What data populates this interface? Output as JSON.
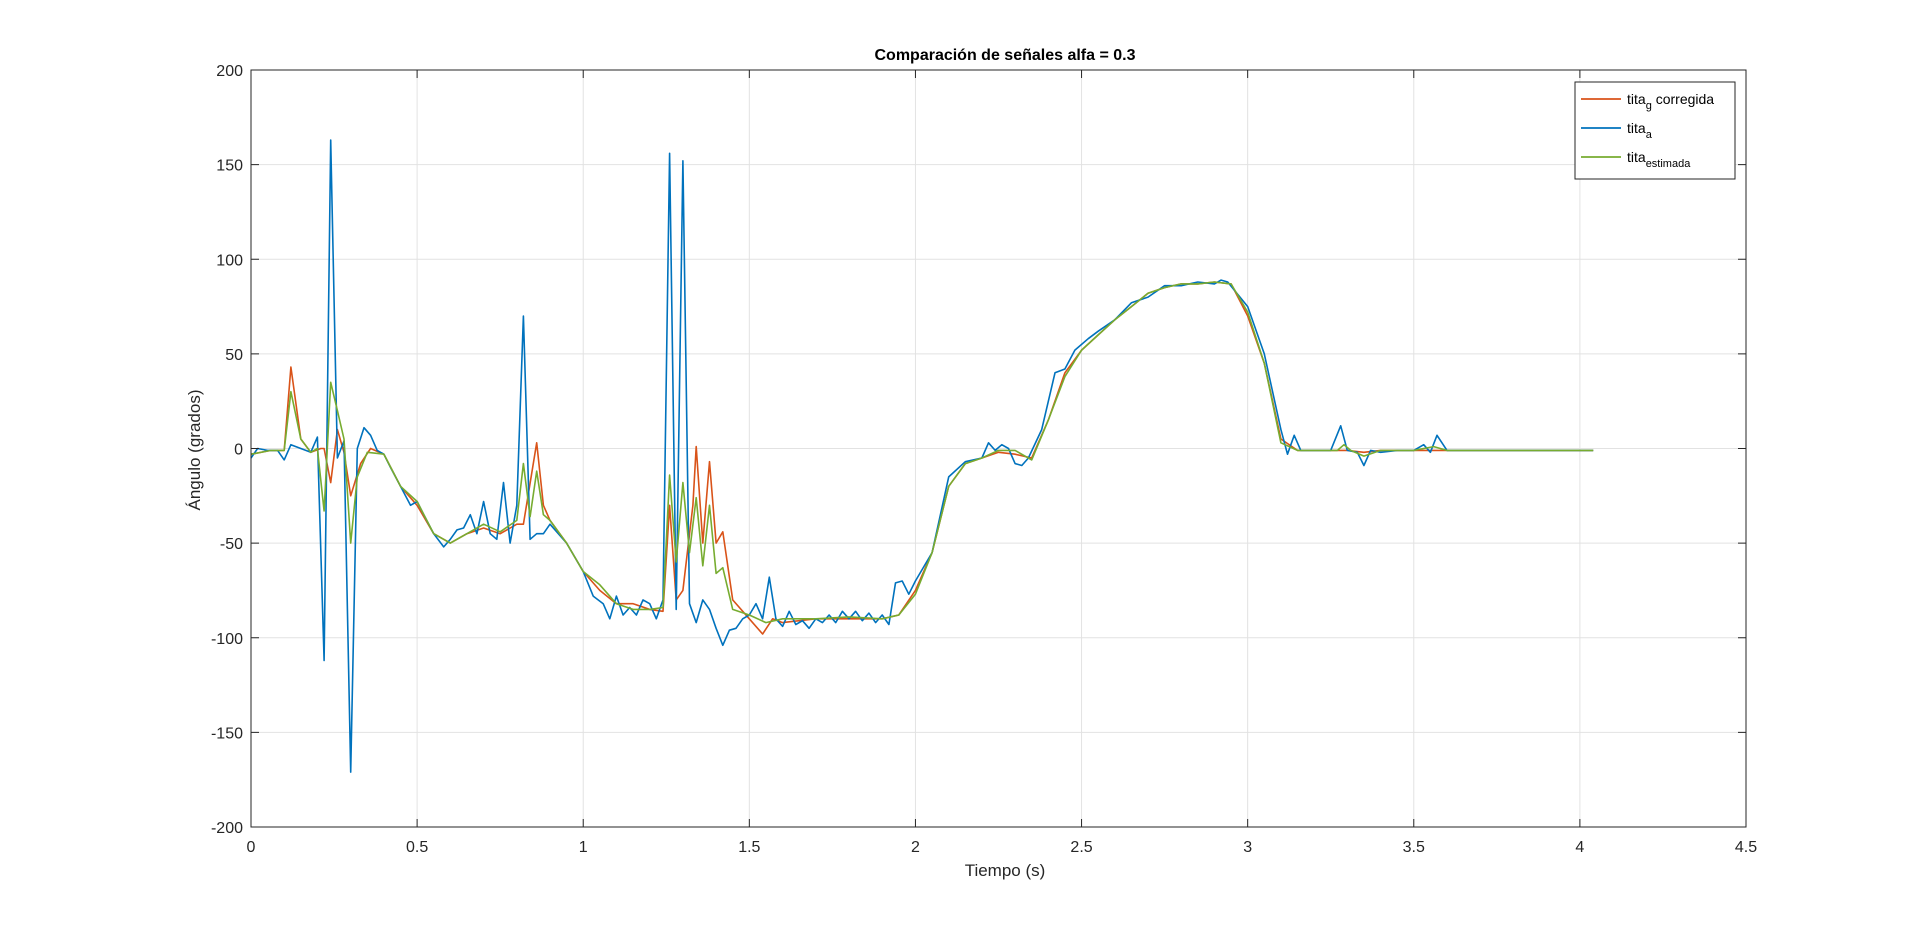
{
  "chart_data": {
    "type": "line",
    "title": "Comparación de señales alfa = 0.3",
    "xlabel": "Tiempo (s)",
    "ylabel": "Ángulo (grados)",
    "xlim": [
      0,
      4.5
    ],
    "ylim": [
      -200,
      200
    ],
    "xticks": [
      0,
      0.5,
      1,
      1.5,
      2,
      2.5,
      3,
      3.5,
      4,
      4.5
    ],
    "xtick_labels": [
      "0",
      "0.5",
      "1",
      "1.5",
      "2",
      "2.5",
      "3",
      "3.5",
      "4",
      "4.5"
    ],
    "yticks": [
      -200,
      -150,
      -100,
      -50,
      0,
      50,
      100,
      150,
      200
    ],
    "ytick_labels": [
      "-200",
      "-150",
      "-100",
      "-50",
      "0",
      "50",
      "100",
      "150",
      "200"
    ],
    "grid": true,
    "legend_position": "top-right",
    "series": [
      {
        "name_base": "tita",
        "name_sub": "g",
        "name_suffix": " corregida",
        "color": "#D95319",
        "points": [
          [
            0,
            -3
          ],
          [
            0.06,
            -1
          ],
          [
            0.1,
            -1
          ],
          [
            0.12,
            43
          ],
          [
            0.15,
            5
          ],
          [
            0.18,
            -2
          ],
          [
            0.21,
            0
          ],
          [
            0.22,
            0
          ],
          [
            0.24,
            -18
          ],
          [
            0.26,
            10
          ],
          [
            0.28,
            -2
          ],
          [
            0.3,
            -25
          ],
          [
            0.33,
            -8
          ],
          [
            0.36,
            0
          ],
          [
            0.4,
            -3
          ],
          [
            0.45,
            -20
          ],
          [
            0.5,
            -30
          ],
          [
            0.55,
            -45
          ],
          [
            0.6,
            -50
          ],
          [
            0.65,
            -45
          ],
          [
            0.7,
            -42
          ],
          [
            0.75,
            -45
          ],
          [
            0.8,
            -40
          ],
          [
            0.82,
            -40
          ],
          [
            0.86,
            3
          ],
          [
            0.88,
            -30
          ],
          [
            0.9,
            -38
          ],
          [
            0.95,
            -50
          ],
          [
            1.0,
            -65
          ],
          [
            1.05,
            -75
          ],
          [
            1.1,
            -82
          ],
          [
            1.15,
            -82
          ],
          [
            1.2,
            -85
          ],
          [
            1.24,
            -86
          ],
          [
            1.26,
            -30
          ],
          [
            1.28,
            -80
          ],
          [
            1.3,
            -75
          ],
          [
            1.33,
            -30
          ],
          [
            1.34,
            1
          ],
          [
            1.36,
            -50
          ],
          [
            1.38,
            -7
          ],
          [
            1.4,
            -50
          ],
          [
            1.42,
            -44
          ],
          [
            1.45,
            -80
          ],
          [
            1.5,
            -90
          ],
          [
            1.54,
            -98
          ],
          [
            1.57,
            -90
          ],
          [
            1.6,
            -92
          ],
          [
            1.7,
            -90
          ],
          [
            1.8,
            -90
          ],
          [
            1.9,
            -90
          ],
          [
            1.95,
            -88
          ],
          [
            2.0,
            -75
          ],
          [
            2.05,
            -55
          ],
          [
            2.1,
            -20
          ],
          [
            2.15,
            -8
          ],
          [
            2.2,
            -5
          ],
          [
            2.25,
            -2
          ],
          [
            2.3,
            -3
          ],
          [
            2.35,
            -5
          ],
          [
            2.4,
            15
          ],
          [
            2.45,
            40
          ],
          [
            2.5,
            52
          ],
          [
            2.55,
            60
          ],
          [
            2.6,
            68
          ],
          [
            2.65,
            75
          ],
          [
            2.7,
            82
          ],
          [
            2.75,
            85
          ],
          [
            2.8,
            87
          ],
          [
            2.85,
            87
          ],
          [
            2.9,
            88
          ],
          [
            2.95,
            87
          ],
          [
            3.0,
            70
          ],
          [
            3.05,
            45
          ],
          [
            3.1,
            5
          ],
          [
            3.15,
            -1
          ],
          [
            3.2,
            -1
          ],
          [
            3.3,
            -1
          ],
          [
            3.35,
            -2
          ],
          [
            3.4,
            -1
          ],
          [
            3.5,
            -1
          ],
          [
            3.6,
            -1
          ],
          [
            3.8,
            -1
          ],
          [
            4.04,
            -1
          ]
        ]
      },
      {
        "name_base": "tita",
        "name_sub": "a",
        "name_suffix": "",
        "color": "#0072BD",
        "points": [
          [
            0,
            -5
          ],
          [
            0.02,
            0
          ],
          [
            0.05,
            -1
          ],
          [
            0.08,
            -1
          ],
          [
            0.1,
            -6
          ],
          [
            0.12,
            2
          ],
          [
            0.15,
            0
          ],
          [
            0.18,
            -2
          ],
          [
            0.2,
            6
          ],
          [
            0.22,
            -112
          ],
          [
            0.24,
            163
          ],
          [
            0.26,
            -5
          ],
          [
            0.28,
            4
          ],
          [
            0.3,
            -171
          ],
          [
            0.32,
            0
          ],
          [
            0.34,
            11
          ],
          [
            0.36,
            7
          ],
          [
            0.38,
            -1
          ],
          [
            0.4,
            -3
          ],
          [
            0.42,
            -10
          ],
          [
            0.45,
            -20
          ],
          [
            0.48,
            -30
          ],
          [
            0.5,
            -28
          ],
          [
            0.52,
            -35
          ],
          [
            0.55,
            -45
          ],
          [
            0.58,
            -52
          ],
          [
            0.6,
            -48
          ],
          [
            0.62,
            -43
          ],
          [
            0.64,
            -42
          ],
          [
            0.66,
            -35
          ],
          [
            0.68,
            -45
          ],
          [
            0.7,
            -28
          ],
          [
            0.72,
            -45
          ],
          [
            0.74,
            -48
          ],
          [
            0.76,
            -18
          ],
          [
            0.78,
            -50
          ],
          [
            0.8,
            -30
          ],
          [
            0.82,
            70
          ],
          [
            0.84,
            -48
          ],
          [
            0.86,
            -45
          ],
          [
            0.88,
            -45
          ],
          [
            0.9,
            -40
          ],
          [
            0.95,
            -50
          ],
          [
            1.0,
            -65
          ],
          [
            1.03,
            -78
          ],
          [
            1.06,
            -82
          ],
          [
            1.08,
            -90
          ],
          [
            1.1,
            -78
          ],
          [
            1.12,
            -88
          ],
          [
            1.14,
            -84
          ],
          [
            1.16,
            -88
          ],
          [
            1.18,
            -80
          ],
          [
            1.2,
            -82
          ],
          [
            1.22,
            -90
          ],
          [
            1.24,
            -80
          ],
          [
            1.26,
            156
          ],
          [
            1.28,
            -85
          ],
          [
            1.3,
            152
          ],
          [
            1.32,
            -82
          ],
          [
            1.34,
            -92
          ],
          [
            1.36,
            -80
          ],
          [
            1.38,
            -85
          ],
          [
            1.4,
            -95
          ],
          [
            1.42,
            -104
          ],
          [
            1.44,
            -96
          ],
          [
            1.46,
            -95
          ],
          [
            1.48,
            -90
          ],
          [
            1.5,
            -88
          ],
          [
            1.52,
            -82
          ],
          [
            1.54,
            -90
          ],
          [
            1.56,
            -68
          ],
          [
            1.58,
            -90
          ],
          [
            1.6,
            -94
          ],
          [
            1.62,
            -86
          ],
          [
            1.64,
            -93
          ],
          [
            1.66,
            -91
          ],
          [
            1.68,
            -95
          ],
          [
            1.7,
            -90
          ],
          [
            1.72,
            -92
          ],
          [
            1.74,
            -88
          ],
          [
            1.76,
            -92
          ],
          [
            1.78,
            -86
          ],
          [
            1.8,
            -90
          ],
          [
            1.82,
            -86
          ],
          [
            1.84,
            -91
          ],
          [
            1.86,
            -87
          ],
          [
            1.88,
            -92
          ],
          [
            1.9,
            -88
          ],
          [
            1.92,
            -93
          ],
          [
            1.94,
            -71
          ],
          [
            1.96,
            -70
          ],
          [
            1.98,
            -77
          ],
          [
            2.0,
            -70
          ],
          [
            2.05,
            -55
          ],
          [
            2.1,
            -15
          ],
          [
            2.15,
            -7
          ],
          [
            2.2,
            -5
          ],
          [
            2.22,
            3
          ],
          [
            2.24,
            -1
          ],
          [
            2.26,
            2
          ],
          [
            2.28,
            0
          ],
          [
            2.3,
            -8
          ],
          [
            2.32,
            -9
          ],
          [
            2.34,
            -5
          ],
          [
            2.38,
            10
          ],
          [
            2.42,
            40
          ],
          [
            2.45,
            42
          ],
          [
            2.48,
            52
          ],
          [
            2.52,
            58
          ],
          [
            2.55,
            62
          ],
          [
            2.6,
            68
          ],
          [
            2.65,
            77
          ],
          [
            2.7,
            80
          ],
          [
            2.75,
            86
          ],
          [
            2.8,
            86
          ],
          [
            2.85,
            88
          ],
          [
            2.9,
            87
          ],
          [
            2.92,
            89
          ],
          [
            2.94,
            88
          ],
          [
            3.0,
            75
          ],
          [
            3.05,
            50
          ],
          [
            3.1,
            10
          ],
          [
            3.12,
            -3
          ],
          [
            3.14,
            7
          ],
          [
            3.16,
            -1
          ],
          [
            3.2,
            -1
          ],
          [
            3.25,
            -1
          ],
          [
            3.28,
            12
          ],
          [
            3.3,
            -1
          ],
          [
            3.33,
            -2
          ],
          [
            3.35,
            -9
          ],
          [
            3.37,
            -1
          ],
          [
            3.4,
            -2
          ],
          [
            3.45,
            -1
          ],
          [
            3.5,
            -1
          ],
          [
            3.53,
            2
          ],
          [
            3.55,
            -2
          ],
          [
            3.57,
            7
          ],
          [
            3.6,
            -1
          ],
          [
            3.7,
            -1
          ],
          [
            3.8,
            -1
          ],
          [
            4.04,
            -1
          ]
        ]
      },
      {
        "name_base": "tita",
        "name_sub": "estimada",
        "name_suffix": "",
        "color": "#77AC30",
        "points": [
          [
            0,
            -3
          ],
          [
            0.06,
            -1
          ],
          [
            0.1,
            -1
          ],
          [
            0.12,
            30
          ],
          [
            0.15,
            5
          ],
          [
            0.18,
            -2
          ],
          [
            0.2,
            0
          ],
          [
            0.22,
            -33
          ],
          [
            0.24,
            35
          ],
          [
            0.26,
            20
          ],
          [
            0.28,
            5
          ],
          [
            0.3,
            -50
          ],
          [
            0.32,
            -15
          ],
          [
            0.35,
            -2
          ],
          [
            0.4,
            -3
          ],
          [
            0.45,
            -20
          ],
          [
            0.5,
            -28
          ],
          [
            0.55,
            -45
          ],
          [
            0.6,
            -50
          ],
          [
            0.65,
            -45
          ],
          [
            0.7,
            -40
          ],
          [
            0.75,
            -44
          ],
          [
            0.8,
            -38
          ],
          [
            0.82,
            -8
          ],
          [
            0.84,
            -36
          ],
          [
            0.86,
            -12
          ],
          [
            0.88,
            -35
          ],
          [
            0.9,
            -38
          ],
          [
            0.95,
            -50
          ],
          [
            1.0,
            -65
          ],
          [
            1.05,
            -72
          ],
          [
            1.1,
            -82
          ],
          [
            1.15,
            -85
          ],
          [
            1.2,
            -85
          ],
          [
            1.24,
            -84
          ],
          [
            1.26,
            -14
          ],
          [
            1.28,
            -60
          ],
          [
            1.3,
            -18
          ],
          [
            1.32,
            -55
          ],
          [
            1.34,
            -26
          ],
          [
            1.36,
            -62
          ],
          [
            1.38,
            -30
          ],
          [
            1.4,
            -66
          ],
          [
            1.42,
            -63
          ],
          [
            1.45,
            -85
          ],
          [
            1.5,
            -88
          ],
          [
            1.55,
            -92
          ],
          [
            1.6,
            -90
          ],
          [
            1.7,
            -90
          ],
          [
            1.8,
            -89
          ],
          [
            1.9,
            -90
          ],
          [
            1.95,
            -88
          ],
          [
            2.0,
            -77
          ],
          [
            2.05,
            -55
          ],
          [
            2.1,
            -20
          ],
          [
            2.15,
            -8
          ],
          [
            2.2,
            -5
          ],
          [
            2.25,
            -1
          ],
          [
            2.3,
            -1
          ],
          [
            2.35,
            -6
          ],
          [
            2.4,
            15
          ],
          [
            2.45,
            38
          ],
          [
            2.5,
            52
          ],
          [
            2.55,
            60
          ],
          [
            2.6,
            68
          ],
          [
            2.65,
            75
          ],
          [
            2.7,
            82
          ],
          [
            2.75,
            85
          ],
          [
            2.8,
            87
          ],
          [
            2.85,
            87
          ],
          [
            2.9,
            88
          ],
          [
            2.95,
            87
          ],
          [
            3.0,
            72
          ],
          [
            3.05,
            45
          ],
          [
            3.1,
            3
          ],
          [
            3.15,
            -1
          ],
          [
            3.2,
            -1
          ],
          [
            3.27,
            -1
          ],
          [
            3.29,
            2
          ],
          [
            3.31,
            -1
          ],
          [
            3.35,
            -4
          ],
          [
            3.4,
            -1
          ],
          [
            3.5,
            -1
          ],
          [
            3.56,
            1
          ],
          [
            3.6,
            -1
          ],
          [
            3.8,
            -1
          ],
          [
            4.04,
            -1
          ]
        ]
      }
    ]
  }
}
